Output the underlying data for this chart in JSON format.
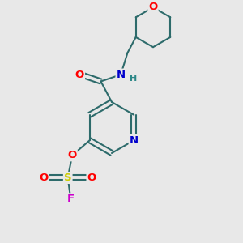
{
  "background_color": "#e8e8e8",
  "bond_color": "#2d6b6b",
  "bond_width": 1.5,
  "atom_colors": {
    "O": "#ff0000",
    "N": "#0000cc",
    "S": "#cccc00",
    "F": "#cc00cc",
    "H": "#2d8888",
    "C": "#2d6b6b"
  },
  "font_size_atoms": 9.5,
  "font_size_h": 8.0
}
